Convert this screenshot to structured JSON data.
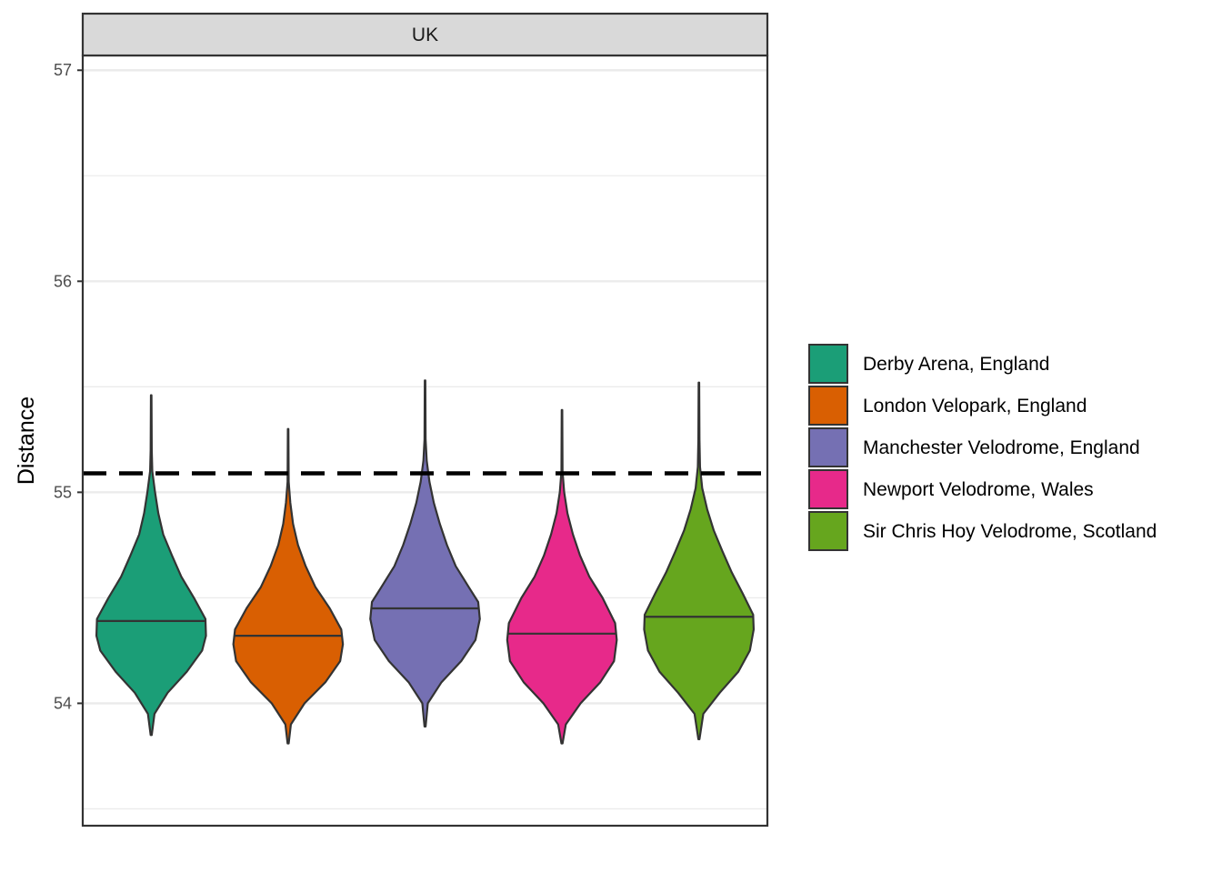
{
  "chart_data": {
    "type": "violin",
    "facet": "UK",
    "ylabel": "Distance",
    "xlabel": "",
    "ylim": [
      53.42,
      57.07
    ],
    "yticks": [
      54,
      55,
      56,
      57
    ],
    "ytick_labels": [
      "54",
      "55",
      "56",
      "57"
    ],
    "minor_gridlines": [
      53.5,
      54.5,
      55.5,
      56.5
    ],
    "grid": true,
    "reference_line": {
      "y": 55.09,
      "style": "dashed",
      "color": "#000000"
    },
    "legend": {
      "position": "right"
    },
    "series": [
      {
        "name": "Derby Arena, England",
        "color": "#1B9E77",
        "min": 53.85,
        "max": 55.46,
        "median": 54.39,
        "profile": [
          [
            53.85,
            0.01
          ],
          [
            53.95,
            0.06
          ],
          [
            54.05,
            0.3
          ],
          [
            54.15,
            0.65
          ],
          [
            54.25,
            0.93
          ],
          [
            54.32,
            1.0
          ],
          [
            54.4,
            0.99
          ],
          [
            54.5,
            0.78
          ],
          [
            54.6,
            0.55
          ],
          [
            54.7,
            0.38
          ],
          [
            54.8,
            0.22
          ],
          [
            54.9,
            0.13
          ],
          [
            55.0,
            0.07
          ],
          [
            55.1,
            0.02
          ],
          [
            55.2,
            0.01
          ],
          [
            55.46,
            0.005
          ]
        ]
      },
      {
        "name": "London Velopark, England",
        "color": "#D95F02",
        "min": 53.81,
        "max": 55.3,
        "median": 54.32,
        "profile": [
          [
            53.81,
            0.01
          ],
          [
            53.9,
            0.05
          ],
          [
            54.0,
            0.3
          ],
          [
            54.1,
            0.68
          ],
          [
            54.2,
            0.95
          ],
          [
            54.28,
            1.0
          ],
          [
            54.35,
            0.97
          ],
          [
            54.45,
            0.76
          ],
          [
            54.55,
            0.5
          ],
          [
            54.65,
            0.32
          ],
          [
            54.75,
            0.18
          ],
          [
            54.85,
            0.09
          ],
          [
            54.95,
            0.04
          ],
          [
            55.05,
            0.01
          ],
          [
            55.3,
            0.005
          ]
        ]
      },
      {
        "name": "Manchester Velodrome, England",
        "color": "#7570B3",
        "min": 53.89,
        "max": 55.53,
        "median": 54.45,
        "profile": [
          [
            53.89,
            0.01
          ],
          [
            54.0,
            0.05
          ],
          [
            54.1,
            0.3
          ],
          [
            54.2,
            0.66
          ],
          [
            54.3,
            0.92
          ],
          [
            54.4,
            1.0
          ],
          [
            54.48,
            0.97
          ],
          [
            54.55,
            0.8
          ],
          [
            54.65,
            0.56
          ],
          [
            54.75,
            0.4
          ],
          [
            54.85,
            0.27
          ],
          [
            54.95,
            0.16
          ],
          [
            55.05,
            0.08
          ],
          [
            55.15,
            0.03
          ],
          [
            55.25,
            0.01
          ],
          [
            55.53,
            0.005
          ]
        ]
      },
      {
        "name": "Newport Velodrome, Wales",
        "color": "#E7298A",
        "min": 53.81,
        "max": 55.39,
        "median": 54.33,
        "profile": [
          [
            53.81,
            0.01
          ],
          [
            53.9,
            0.07
          ],
          [
            54.0,
            0.34
          ],
          [
            54.1,
            0.7
          ],
          [
            54.2,
            0.95
          ],
          [
            54.3,
            1.0
          ],
          [
            54.38,
            0.97
          ],
          [
            54.5,
            0.74
          ],
          [
            54.6,
            0.5
          ],
          [
            54.7,
            0.33
          ],
          [
            54.8,
            0.2
          ],
          [
            54.9,
            0.1
          ],
          [
            55.0,
            0.04
          ],
          [
            55.1,
            0.01
          ],
          [
            55.39,
            0.005
          ]
        ]
      },
      {
        "name": "Sir Chris Hoy Velodrome, Scotland",
        "color": "#66A61E",
        "min": 53.83,
        "max": 55.52,
        "median": 54.41,
        "profile": [
          [
            53.83,
            0.01
          ],
          [
            53.95,
            0.08
          ],
          [
            54.05,
            0.38
          ],
          [
            54.15,
            0.72
          ],
          [
            54.25,
            0.93
          ],
          [
            54.35,
            1.0
          ],
          [
            54.42,
            0.99
          ],
          [
            54.52,
            0.8
          ],
          [
            54.62,
            0.6
          ],
          [
            54.72,
            0.43
          ],
          [
            54.82,
            0.27
          ],
          [
            54.92,
            0.15
          ],
          [
            55.02,
            0.06
          ],
          [
            55.12,
            0.02
          ],
          [
            55.25,
            0.01
          ],
          [
            55.52,
            0.005
          ]
        ]
      }
    ]
  }
}
